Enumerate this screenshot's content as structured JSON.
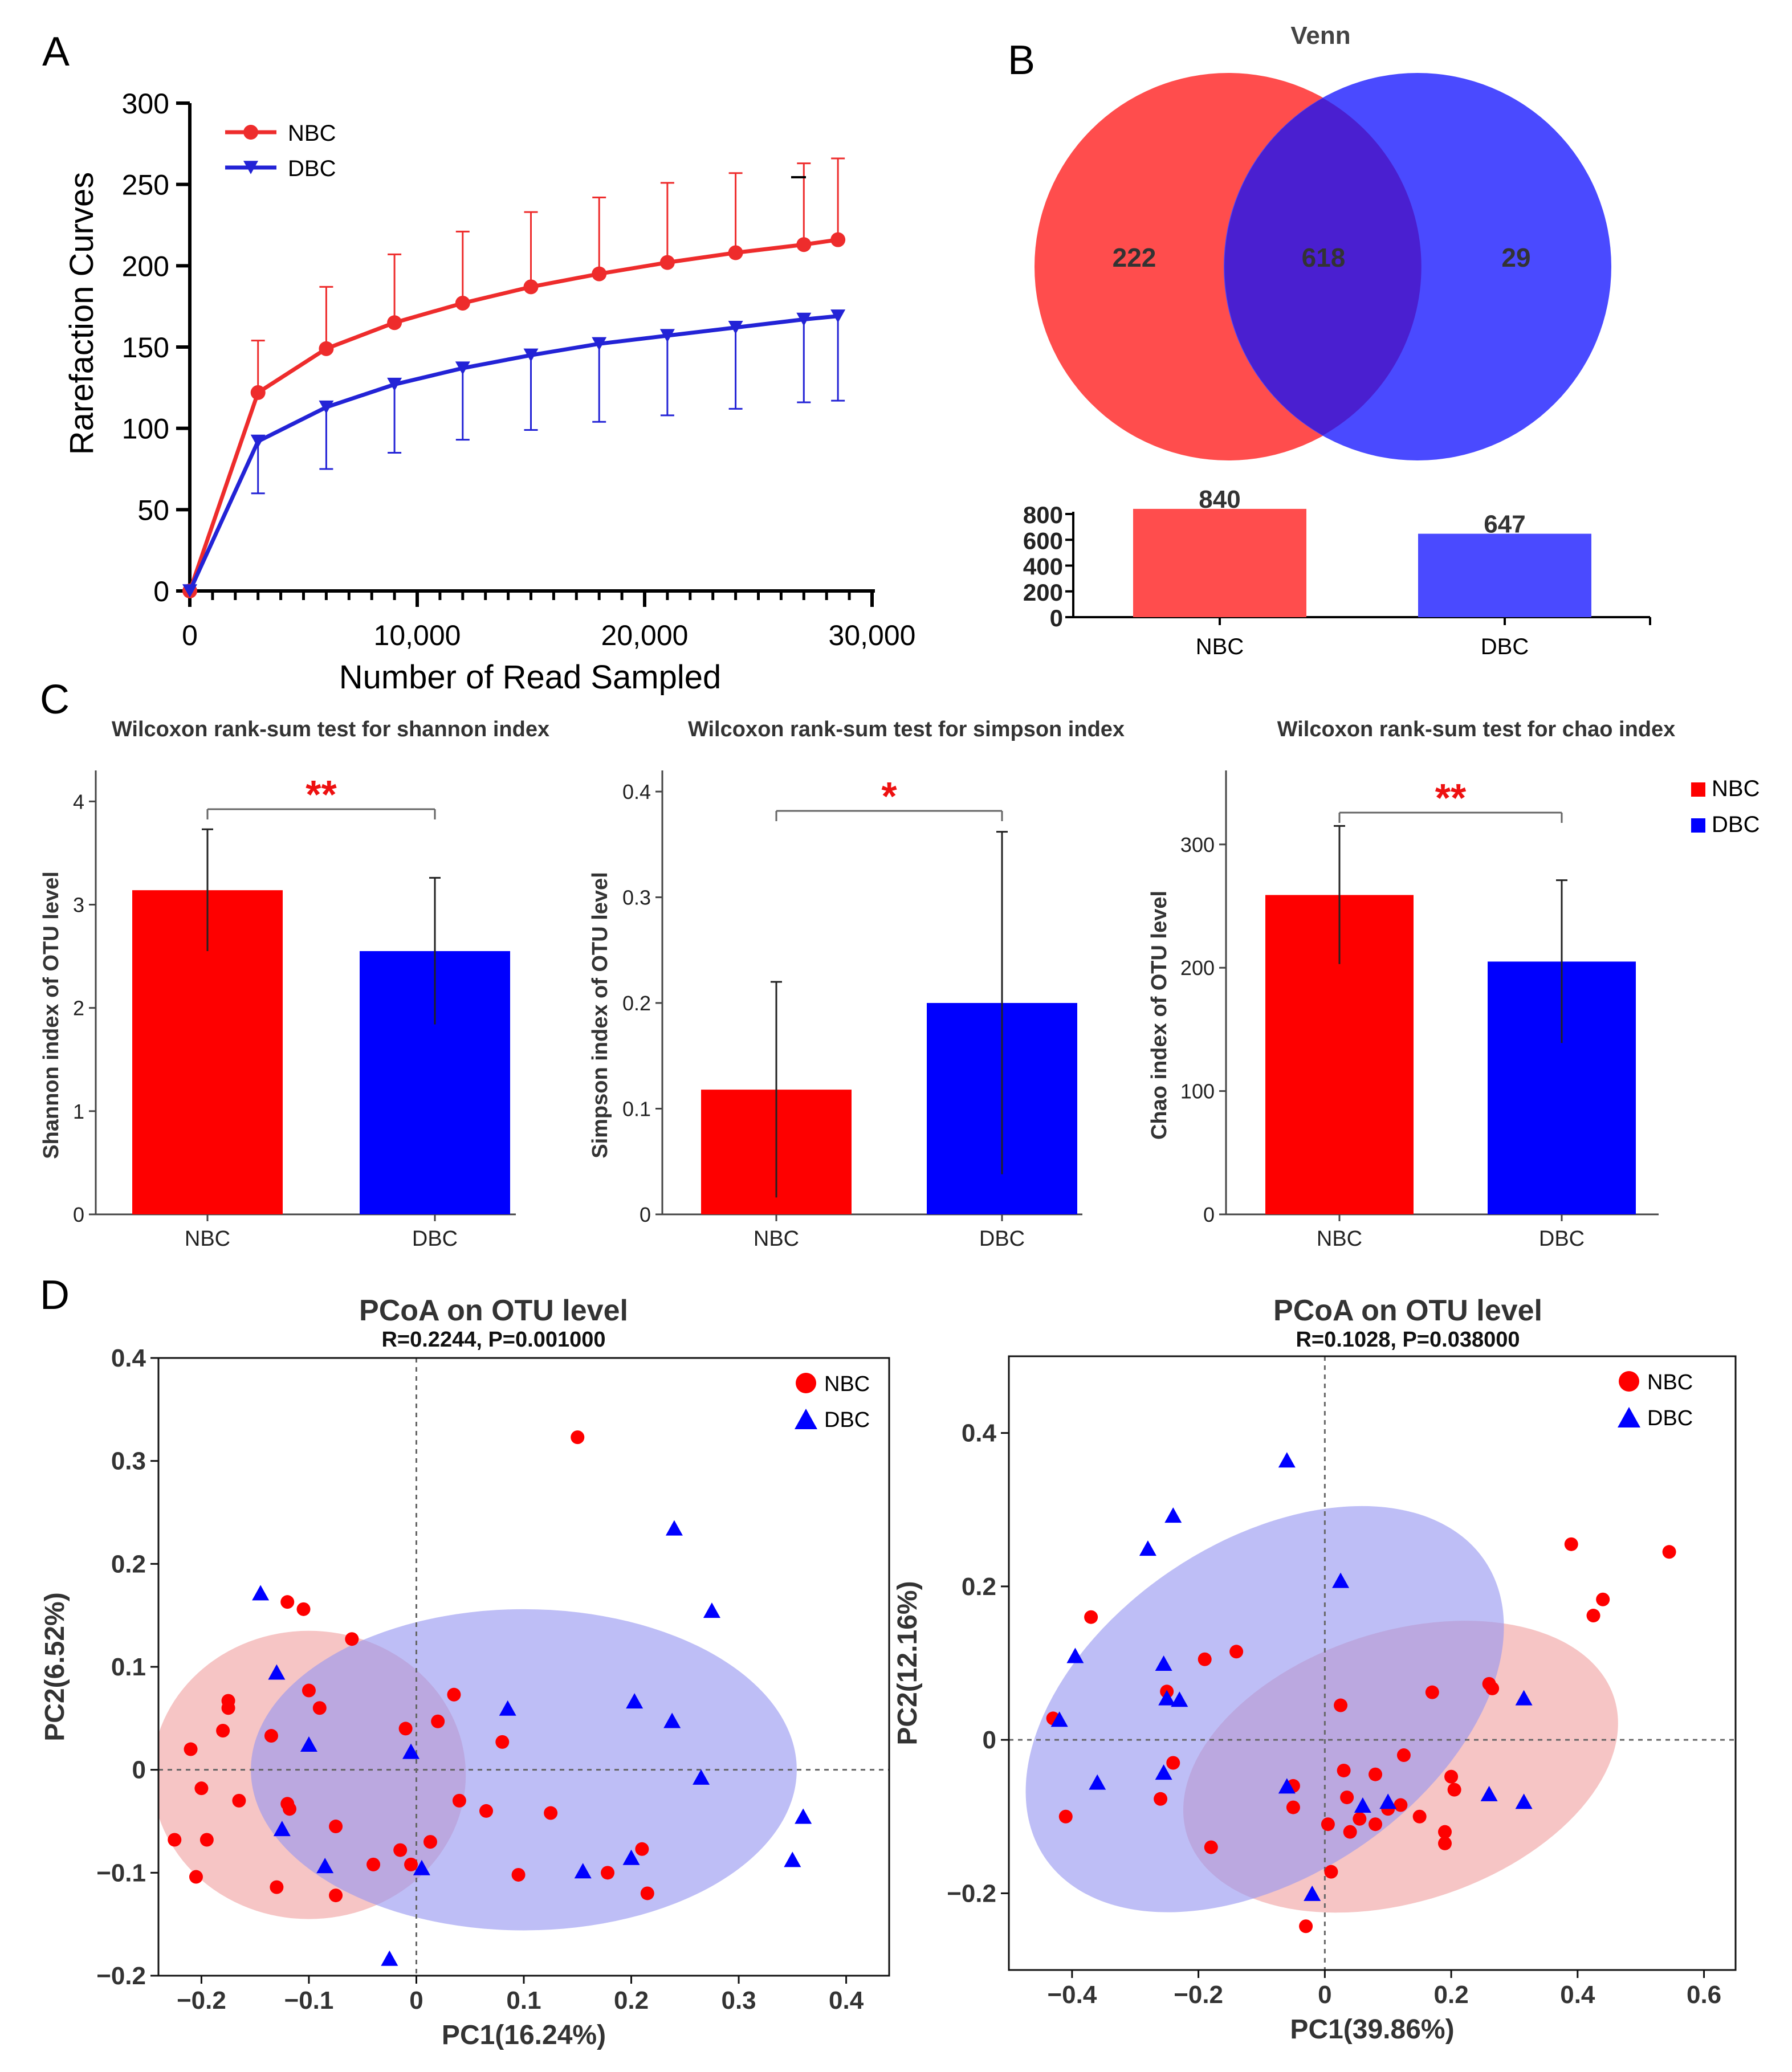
{
  "panels": {
    "A": "A",
    "B": "B",
    "C": "C",
    "D": "D"
  },
  "colors": {
    "nbc": "#ee2c2c",
    "dbc": "#2323d6",
    "nbc_bar_c": "#fe0000",
    "dbc_bar_c": "#0000fe",
    "venn_nbc": "#ff4d4d",
    "venn_dbc": "#4a4aff",
    "venn_overlap": "#4a1fd0",
    "sig": "#ee1111",
    "ellipse_nbc": "rgba(238,150,150,0.55)",
    "ellipse_dbc": "rgba(150,150,240,0.62)"
  },
  "chart_data": [
    {
      "id": "A",
      "type": "line",
      "xlabel": "Number of Read Sampled",
      "ylabel": "Rarefaction Curves",
      "xlim": [
        0,
        30000
      ],
      "ylim": [
        0,
        300
      ],
      "xticks": [
        0,
        10000,
        20000,
        30000
      ],
      "xtick_labels": [
        "0",
        "10,000",
        "20,000",
        "30,000"
      ],
      "yticks": [
        0,
        50,
        100,
        150,
        200,
        250,
        300
      ],
      "legend": [
        "NBC",
        "DBC"
      ],
      "x": [
        0,
        3000,
        6000,
        9000,
        12000,
        15000,
        18000,
        21000,
        24000,
        27000,
        28500
      ],
      "series": [
        {
          "name": "NBC",
          "values": [
            0,
            122,
            149,
            165,
            177,
            187,
            195,
            202,
            208,
            213,
            216
          ],
          "err": [
            0,
            32,
            38,
            42,
            44,
            46,
            47,
            49,
            49,
            50,
            50
          ]
        },
        {
          "name": "DBC",
          "values": [
            0,
            92,
            113,
            127,
            137,
            145,
            152,
            157,
            162,
            167,
            169
          ],
          "err": [
            0,
            32,
            38,
            42,
            44,
            46,
            48,
            49,
            50,
            51,
            52
          ]
        }
      ]
    },
    {
      "id": "B",
      "type": "venn",
      "title": "Venn",
      "only_nbc": "222",
      "shared": "618",
      "only_dbc": "29",
      "bar_categories": [
        "NBC",
        "DBC"
      ],
      "bar_values": [
        840,
        647
      ],
      "bar_value_labels": [
        "840",
        "647"
      ],
      "ylim": [
        0,
        800
      ],
      "yticks": [
        0,
        200,
        400,
        600,
        800
      ]
    },
    {
      "id": "C1",
      "type": "bar",
      "title": "Wilcoxon rank-sum test for shannon index",
      "ylabel": "Shannon index of OTU level",
      "categories": [
        "NBC",
        "DBC"
      ],
      "values": [
        3.14,
        2.55
      ],
      "err": [
        0.59,
        0.71
      ],
      "ylim": [
        0,
        4.3
      ],
      "yticks": [
        0,
        1,
        2,
        3,
        4
      ],
      "ytick_labels": [
        "0",
        "1",
        "2",
        "3",
        "4"
      ],
      "significance": "**"
    },
    {
      "id": "C2",
      "type": "bar",
      "title": "Wilcoxon rank-sum test for simpson index",
      "ylabel": "Simpson index of OTU level",
      "categories": [
        "NBC",
        "DBC"
      ],
      "values": [
        0.118,
        0.2
      ],
      "err": [
        0.102,
        0.162
      ],
      "ylim": [
        0,
        0.42
      ],
      "yticks": [
        0,
        0.1,
        0.2,
        0.3,
        0.4
      ],
      "ytick_labels": [
        "0",
        "0.1",
        "0.2",
        "0.3",
        "0.4"
      ],
      "significance": "*"
    },
    {
      "id": "C3",
      "type": "bar",
      "title": "Wilcoxon rank-sum test for chao index",
      "ylabel": "Chao index of OTU level",
      "categories": [
        "NBC",
        "DBC"
      ],
      "values": [
        259,
        205
      ],
      "err": [
        56,
        66
      ],
      "ylim": [
        0,
        360
      ],
      "yticks": [
        0,
        100,
        200,
        300
      ],
      "ytick_labels": [
        "0",
        "100",
        "200",
        "300"
      ],
      "significance": "**",
      "legend": [
        "NBC",
        "DBC"
      ]
    },
    {
      "id": "D1",
      "type": "scatter",
      "title": "PCoA on OTU level",
      "subtitle": "R=0.2244, P=0.001000",
      "xlabel": "PC1(16.24%)",
      "ylabel": "PC2(6.52%)",
      "xlim": [
        -0.24,
        0.44
      ],
      "ylim": [
        -0.2,
        0.4
      ],
      "xticks": [
        -0.2,
        -0.1,
        0,
        0.1,
        0.2,
        0.3,
        0.4
      ],
      "xtick_labels": [
        "−0.2",
        "−0.1",
        "0",
        "0.1",
        "0.2",
        "0.3",
        "0.4"
      ],
      "yticks": [
        -0.2,
        -0.1,
        0,
        0.1,
        0.2,
        0.3,
        0.4
      ],
      "ytick_labels": [
        "−0.2",
        "−0.1",
        "0",
        "0.1",
        "0.2",
        "0.3",
        "0.4"
      ],
      "legend": [
        "NBC",
        "DBC"
      ],
      "ellipses": [
        {
          "group": "NBC",
          "cx": -0.1,
          "cy": -0.005,
          "rx": 0.146,
          "ry": 0.14
        },
        {
          "group": "DBC",
          "cx": 0.1,
          "cy": 0.0,
          "rx": 0.254,
          "ry": 0.156
        }
      ],
      "series": [
        {
          "name": "NBC",
          "points": [
            [
              0.15,
              0.323
            ],
            [
              -0.12,
              0.163
            ],
            [
              -0.105,
              0.156
            ],
            [
              -0.06,
              0.127
            ],
            [
              -0.175,
              0.067
            ],
            [
              -0.175,
              0.06
            ],
            [
              -0.18,
              0.038
            ],
            [
              -0.21,
              0.02
            ],
            [
              -0.135,
              0.033
            ],
            [
              -0.1,
              0.077
            ],
            [
              -0.09,
              0.06
            ],
            [
              -0.01,
              0.04
            ],
            [
              0.02,
              0.047
            ],
            [
              0.035,
              0.073
            ],
            [
              0.08,
              0.027
            ],
            [
              -0.2,
              -0.018
            ],
            [
              -0.165,
              -0.03
            ],
            [
              -0.12,
              -0.033
            ],
            [
              -0.118,
              -0.038
            ],
            [
              -0.225,
              -0.068
            ],
            [
              -0.195,
              -0.068
            ],
            [
              -0.075,
              -0.055
            ],
            [
              -0.04,
              -0.092
            ],
            [
              -0.015,
              -0.078
            ],
            [
              -0.005,
              -0.092
            ],
            [
              0.013,
              -0.07
            ],
            [
              0.04,
              -0.03
            ],
            [
              0.065,
              -0.04
            ],
            [
              0.125,
              -0.042
            ],
            [
              -0.205,
              -0.104
            ],
            [
              -0.13,
              -0.114
            ],
            [
              -0.075,
              -0.122
            ],
            [
              0.095,
              -0.102
            ],
            [
              0.178,
              -0.1
            ],
            [
              0.21,
              -0.077
            ],
            [
              0.215,
              -0.12
            ]
          ]
        },
        {
          "name": "DBC",
          "points": [
            [
              -0.145,
              0.172
            ],
            [
              -0.13,
              0.095
            ],
            [
              -0.1,
              0.025
            ],
            [
              -0.125,
              -0.057
            ],
            [
              -0.085,
              -0.093
            ],
            [
              -0.005,
              0.018
            ],
            [
              0.005,
              -0.095
            ],
            [
              0.085,
              0.06
            ],
            [
              -0.025,
              -0.183
            ],
            [
              0.155,
              -0.098
            ],
            [
              0.2,
              -0.085
            ],
            [
              0.203,
              0.067
            ],
            [
              0.24,
              0.235
            ],
            [
              0.238,
              0.048
            ],
            [
              0.275,
              0.155
            ],
            [
              0.265,
              -0.007
            ],
            [
              0.36,
              -0.045
            ],
            [
              0.35,
              -0.087
            ]
          ]
        }
      ]
    },
    {
      "id": "D2",
      "type": "scatter",
      "title": "PCoA on OTU level",
      "subtitle": "R=0.1028, P=0.038000",
      "xlabel": "PC1(39.86%)",
      "ylabel": "PC2(12.16%)",
      "xlim": [
        -0.5,
        0.65
      ],
      "ylim": [
        -0.3,
        0.5
      ],
      "xticks": [
        -0.4,
        -0.2,
        0,
        0.2,
        0.4,
        0.6
      ],
      "xtick_labels": [
        "−0.4",
        "−0.2",
        "0",
        "0.2",
        "0.4",
        "0.6"
      ],
      "yticks": [
        -0.2,
        0,
        0.2,
        0.4
      ],
      "ytick_labels": [
        "−0.2",
        "0",
        "0.2",
        "0.4"
      ],
      "legend": [
        "NBC",
        "DBC"
      ],
      "ellipses": [
        {
          "group": "NBC",
          "cx": 0.12,
          "cy": -0.035,
          "rx": 0.355,
          "ry": 0.176,
          "angle": -18
        },
        {
          "group": "DBC",
          "cx": -0.095,
          "cy": 0.04,
          "rx": 0.42,
          "ry": 0.218,
          "angle": -34
        }
      ],
      "series": [
        {
          "name": "NBC",
          "points": [
            [
              -0.43,
              0.028
            ],
            [
              -0.37,
              0.16
            ],
            [
              -0.41,
              -0.1
            ],
            [
              -0.19,
              0.105
            ],
            [
              -0.14,
              0.115
            ],
            [
              -0.25,
              0.063
            ],
            [
              -0.24,
              -0.03
            ],
            [
              -0.26,
              -0.077
            ],
            [
              -0.18,
              -0.14
            ],
            [
              -0.05,
              -0.088
            ],
            [
              -0.05,
              -0.06
            ],
            [
              0.025,
              0.045
            ],
            [
              0.03,
              -0.04
            ],
            [
              0.035,
              -0.075
            ],
            [
              0.04,
              -0.12
            ],
            [
              0.08,
              -0.045
            ],
            [
              0.055,
              -0.103
            ],
            [
              0.08,
              -0.11
            ],
            [
              0.1,
              -0.09
            ],
            [
              0.12,
              -0.085
            ],
            [
              0.125,
              -0.02
            ],
            [
              0.15,
              -0.1
            ],
            [
              0.17,
              0.062
            ],
            [
              0.19,
              -0.12
            ],
            [
              0.19,
              -0.135
            ],
            [
              0.2,
              -0.048
            ],
            [
              0.205,
              -0.065
            ],
            [
              0.26,
              0.073
            ],
            [
              0.265,
              0.067
            ],
            [
              0.005,
              -0.11
            ],
            [
              0.01,
              -0.172
            ],
            [
              -0.03,
              -0.243
            ],
            [
              0.39,
              0.255
            ],
            [
              0.44,
              0.183
            ],
            [
              0.425,
              0.162
            ],
            [
              0.545,
              0.245
            ]
          ]
        },
        {
          "name": "DBC",
          "points": [
            [
              -0.06,
              0.365
            ],
            [
              -0.24,
              0.293
            ],
            [
              -0.28,
              0.25
            ],
            [
              0.025,
              0.208
            ],
            [
              -0.395,
              0.11
            ],
            [
              -0.255,
              0.1
            ],
            [
              -0.25,
              0.055
            ],
            [
              -0.23,
              0.053
            ],
            [
              -0.42,
              0.027
            ],
            [
              -0.36,
              -0.055
            ],
            [
              -0.255,
              -0.042
            ],
            [
              -0.06,
              -0.06
            ],
            [
              -0.02,
              -0.2
            ],
            [
              0.06,
              -0.085
            ],
            [
              0.1,
              -0.08
            ],
            [
              0.26,
              -0.07
            ],
            [
              0.315,
              -0.08
            ],
            [
              0.315,
              0.055
            ]
          ]
        }
      ]
    }
  ]
}
